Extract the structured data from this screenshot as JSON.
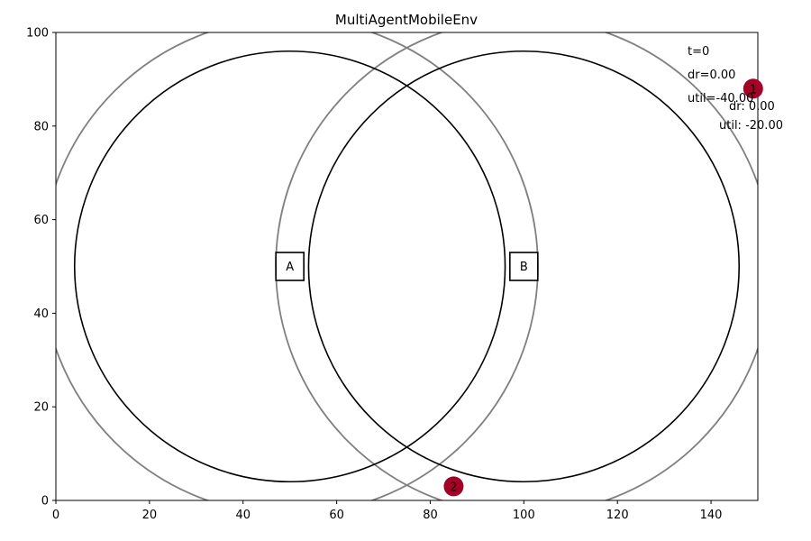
{
  "chart_data": {
    "type": "scatter",
    "title": "MultiAgentMobileEnv",
    "xlabel": "",
    "ylabel": "",
    "xlim": [
      0,
      150
    ],
    "ylim": [
      0,
      100
    ],
    "xticks": [
      0,
      20,
      40,
      60,
      80,
      100,
      120,
      140
    ],
    "yticks": [
      0,
      20,
      40,
      60,
      80,
      100
    ],
    "grid": false,
    "colors": {
      "coverage_circle": "#000000",
      "outer_circle": "#808080",
      "user_marker": "#a50026"
    },
    "stations": [
      {
        "label": "A",
        "x": 50,
        "y": 50,
        "coverage_radius": 46,
        "outer_radius": 53
      },
      {
        "label": "B",
        "x": 100,
        "y": 50,
        "coverage_radius": 46,
        "outer_radius": 53
      }
    ],
    "users": [
      {
        "label": "1",
        "x": 149,
        "y": 88,
        "dr_text": "dr: 0.00",
        "util_text": "util: -20.00"
      },
      {
        "label": "2",
        "x": 85,
        "y": 3
      }
    ],
    "info": {
      "t": "t=0",
      "dr": "dr=0.00",
      "util": "util=-40.00"
    }
  }
}
